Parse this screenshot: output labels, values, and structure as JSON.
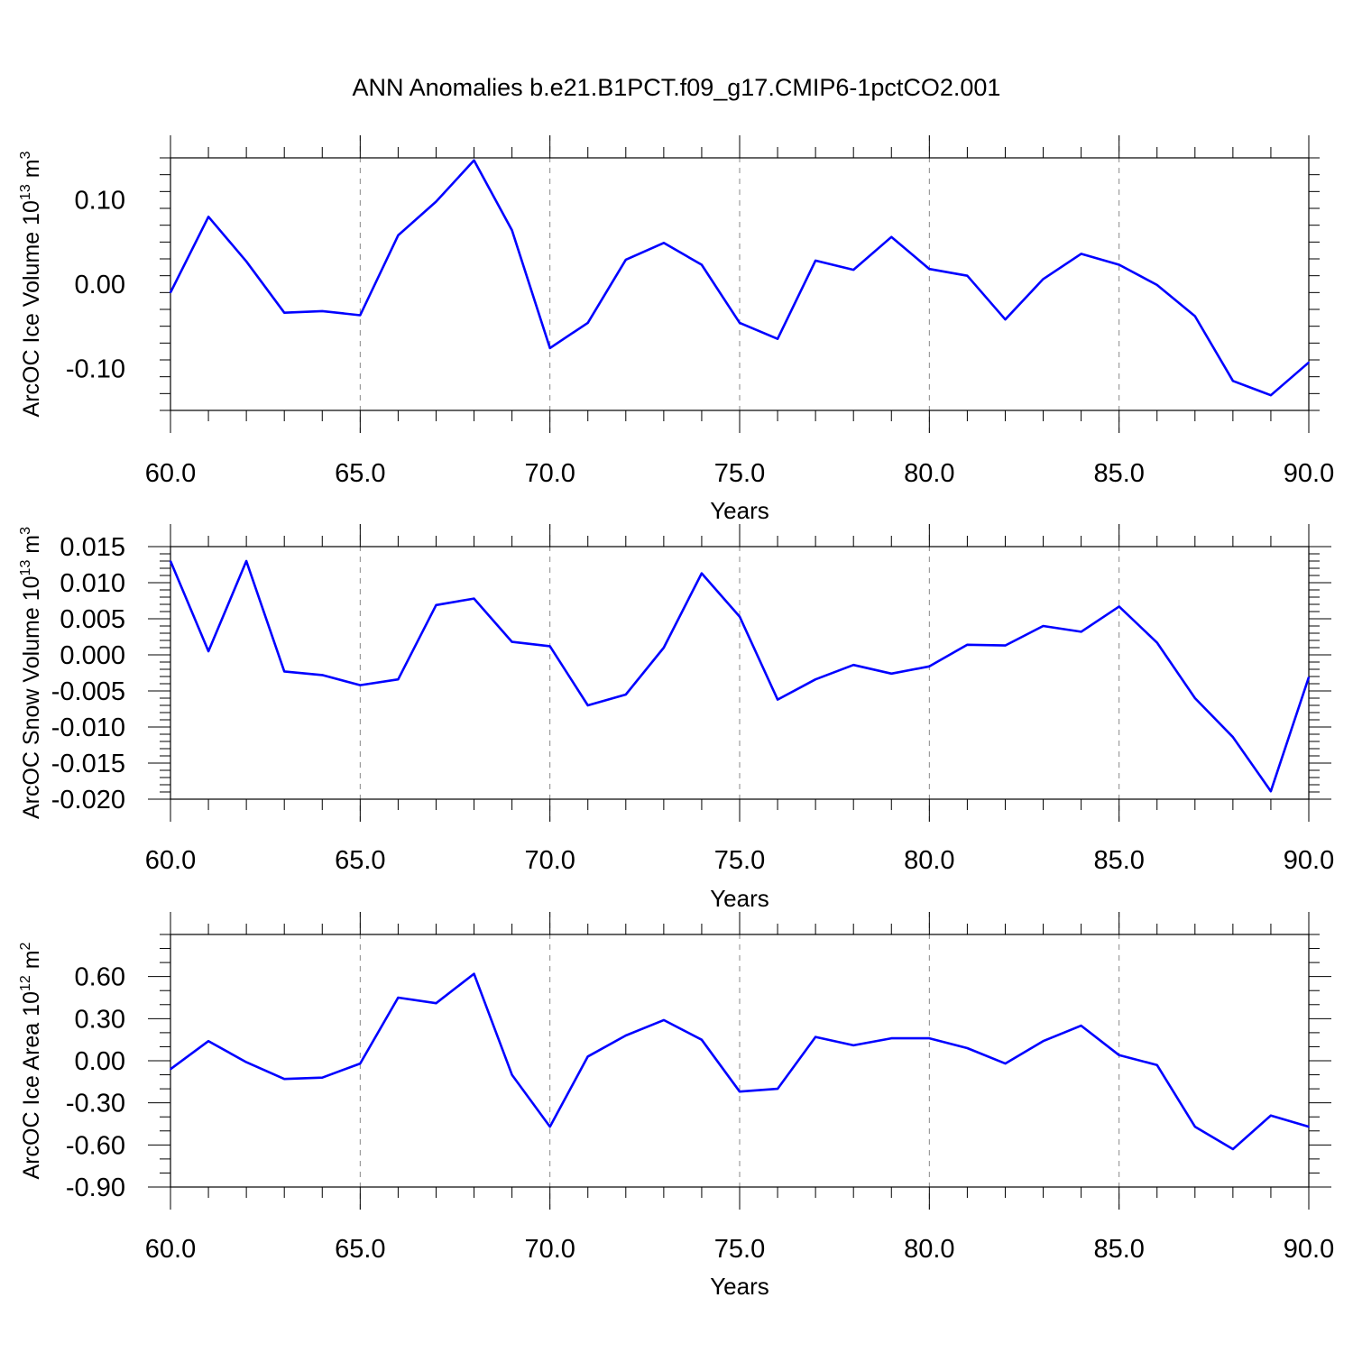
{
  "title": "ANN Anomalies b.e21.B1PCT.f09_g17.CMIP6-1pctCO2.001",
  "line_color": "#0000ff",
  "chart_data": [
    {
      "type": "line",
      "ylabel_main": "ArcOC Ice Volume 10",
      "ylabel_exp": "13",
      "ylabel_unit": " m",
      "ylabel_unit_exp": "3",
      "xlabel": "Years",
      "xlim": [
        60,
        90
      ],
      "ylim": [
        -0.15,
        0.15
      ],
      "yticks": [
        -0.1,
        0.0,
        0.1
      ],
      "ytick_labels": [
        "-0.10",
        "0.00",
        "0.10"
      ],
      "yminor_step": 0.02,
      "xticks": [
        60,
        65,
        70,
        75,
        80,
        85,
        90
      ],
      "xtick_labels": [
        "60.0",
        "65.0",
        "70.0",
        "75.0",
        "80.0",
        "85.0",
        "90.0"
      ],
      "x": [
        60,
        61,
        62,
        63,
        64,
        65,
        66,
        67,
        68,
        69,
        70,
        71,
        72,
        73,
        74,
        75,
        76,
        77,
        78,
        79,
        80,
        81,
        82,
        83,
        84,
        85,
        86,
        87,
        88,
        89,
        90
      ],
      "series": [
        {
          "values": [
            -0.01,
            0.08,
            0.027,
            -0.034,
            -0.032,
            -0.037,
            0.058,
            0.098,
            0.147,
            0.064,
            -0.076,
            -0.046,
            0.029,
            0.049,
            0.023,
            -0.046,
            -0.065,
            0.028,
            0.017,
            0.056,
            0.018,
            0.01,
            -0.042,
            0.006,
            0.036,
            0.023,
            -0.001,
            -0.038,
            -0.115,
            -0.132,
            -0.093
          ]
        }
      ]
    },
    {
      "type": "line",
      "ylabel_main": "ArcOC Snow Volume 10",
      "ylabel_exp": "13",
      "ylabel_unit": " m",
      "ylabel_unit_exp": "3",
      "xlabel": "Years",
      "xlim": [
        60,
        90
      ],
      "ylim": [
        -0.02,
        0.015
      ],
      "yticks": [
        -0.02,
        -0.015,
        -0.01,
        -0.005,
        0.0,
        0.005,
        0.01,
        0.015
      ],
      "ytick_labels": [
        "-0.020",
        "-0.015",
        "-0.010",
        "-0.005",
        "0.000",
        "0.005",
        "0.010",
        "0.015"
      ],
      "yminor_step": 0.001,
      "xticks": [
        60,
        65,
        70,
        75,
        80,
        85,
        90
      ],
      "xtick_labels": [
        "60.0",
        "65.0",
        "70.0",
        "75.0",
        "80.0",
        "85.0",
        "90.0"
      ],
      "x": [
        60,
        61,
        62,
        63,
        64,
        65,
        66,
        67,
        68,
        69,
        70,
        71,
        72,
        73,
        74,
        75,
        76,
        77,
        78,
        79,
        80,
        81,
        82,
        83,
        84,
        85,
        86,
        87,
        88,
        89,
        90
      ],
      "series": [
        {
          "values": [
            0.013,
            0.0005,
            0.013,
            -0.0023,
            -0.0028,
            -0.0042,
            -0.0034,
            0.0069,
            0.0078,
            0.0018,
            0.0012,
            -0.007,
            -0.0055,
            0.001,
            0.0113,
            0.0053,
            -0.0062,
            -0.0034,
            -0.0014,
            -0.0026,
            -0.0016,
            0.0014,
            0.0013,
            0.004,
            0.0032,
            0.0067,
            0.0017,
            -0.006,
            -0.0114,
            -0.0189,
            -0.0031
          ]
        }
      ]
    },
    {
      "type": "line",
      "ylabel_main": "ArcOC Ice Area 10",
      "ylabel_exp": "12",
      "ylabel_unit": " m",
      "ylabel_unit_exp": "2",
      "xlabel": "Years",
      "xlim": [
        60,
        90
      ],
      "ylim": [
        -0.9,
        0.9
      ],
      "yticks": [
        -0.9,
        -0.6,
        -0.3,
        0.0,
        0.3,
        0.6
      ],
      "ytick_labels": [
        "-0.90",
        "-0.60",
        "-0.30",
        "0.00",
        "0.30",
        "0.60"
      ],
      "yminor_step": 0.1,
      "xticks": [
        60,
        65,
        70,
        75,
        80,
        85,
        90
      ],
      "xtick_labels": [
        "60.0",
        "65.0",
        "70.0",
        "75.0",
        "80.0",
        "85.0",
        "90.0"
      ],
      "x": [
        60,
        61,
        62,
        63,
        64,
        65,
        66,
        67,
        68,
        69,
        70,
        71,
        72,
        73,
        74,
        75,
        76,
        77,
        78,
        79,
        80,
        81,
        82,
        83,
        84,
        85,
        86,
        87,
        88,
        89,
        90
      ],
      "series": [
        {
          "values": [
            -0.06,
            0.14,
            -0.01,
            -0.13,
            -0.12,
            -0.02,
            0.45,
            0.41,
            0.62,
            -0.1,
            -0.47,
            0.03,
            0.18,
            0.29,
            0.15,
            -0.22,
            -0.2,
            0.17,
            0.11,
            0.16,
            0.16,
            0.09,
            -0.02,
            0.14,
            0.25,
            0.04,
            -0.03,
            -0.47,
            -0.63,
            -0.39,
            -0.47
          ]
        }
      ]
    }
  ]
}
